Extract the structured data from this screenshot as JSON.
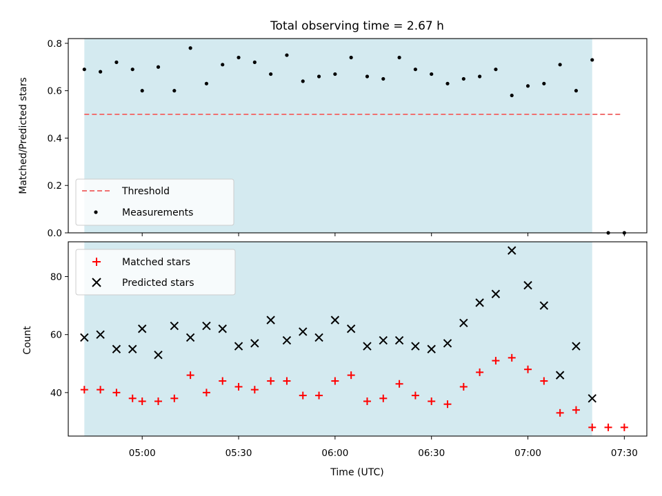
{
  "figure": {
    "title": "Total observing time = 2.67 h"
  },
  "chart_data": [
    {
      "type": "scatter",
      "ylabel": "Matched/Predicted stars",
      "xlim": [
        "04:37",
        "07:37"
      ],
      "ylim": [
        0.0,
        0.82
      ],
      "yticks": [
        {
          "value": 0.0,
          "label": "0.0"
        },
        {
          "value": 0.2,
          "label": "0.2"
        },
        {
          "value": 0.4,
          "label": "0.4"
        },
        {
          "value": 0.6,
          "label": "0.6"
        },
        {
          "value": 0.8,
          "label": "0.8"
        }
      ],
      "shaded_interval": {
        "start": "04:42",
        "end": "07:20",
        "color": "#d4eaf0"
      },
      "legend_position": "lower-left",
      "series": [
        {
          "name": "Threshold",
          "style": "dashed-line",
          "color": "#f07070",
          "x": [
            "04:42",
            "07:29"
          ],
          "y": [
            0.5,
            0.5
          ]
        },
        {
          "name": "Measurements",
          "style": "dot",
          "color": "#000000",
          "x": [
            "04:42",
            "04:47",
            "04:52",
            "04:57",
            "05:00",
            "05:05",
            "05:10",
            "05:15",
            "05:20",
            "05:25",
            "05:30",
            "05:35",
            "05:40",
            "05:45",
            "05:50",
            "05:55",
            "06:00",
            "06:05",
            "06:10",
            "06:15",
            "06:20",
            "06:25",
            "06:30",
            "06:35",
            "06:40",
            "06:45",
            "06:50",
            "06:55",
            "07:00",
            "07:05",
            "07:10",
            "07:15",
            "07:20",
            "07:25",
            "07:30"
          ],
          "y": [
            0.69,
            0.68,
            0.72,
            0.69,
            0.6,
            0.7,
            0.6,
            0.78,
            0.63,
            0.71,
            0.74,
            0.72,
            0.67,
            0.75,
            0.64,
            0.66,
            0.67,
            0.74,
            0.66,
            0.65,
            0.74,
            0.69,
            0.67,
            0.63,
            0.65,
            0.66,
            0.69,
            0.58,
            0.62,
            0.63,
            0.71,
            0.6,
            0.73,
            0.0,
            0.0
          ]
        }
      ]
    },
    {
      "type": "scatter",
      "ylabel": "Count",
      "xlabel": "Time (UTC)",
      "xlim": [
        "04:37",
        "07:37"
      ],
      "ylim": [
        25,
        92
      ],
      "xticks": [
        {
          "value": "05:00",
          "label": "05:00"
        },
        {
          "value": "05:30",
          "label": "05:30"
        },
        {
          "value": "06:00",
          "label": "06:00"
        },
        {
          "value": "06:30",
          "label": "06:30"
        },
        {
          "value": "07:00",
          "label": "07:00"
        },
        {
          "value": "07:30",
          "label": "07:30"
        }
      ],
      "yticks": [
        {
          "value": 40,
          "label": "40"
        },
        {
          "value": 60,
          "label": "60"
        },
        {
          "value": 80,
          "label": "80"
        }
      ],
      "shaded_interval": {
        "start": "04:42",
        "end": "07:20",
        "color": "#d4eaf0"
      },
      "legend_position": "upper-left",
      "series": [
        {
          "name": "Matched stars",
          "style": "plus",
          "color": "#ff0000",
          "x": [
            "04:42",
            "04:47",
            "04:52",
            "04:57",
            "05:00",
            "05:05",
            "05:10",
            "05:15",
            "05:20",
            "05:25",
            "05:30",
            "05:35",
            "05:40",
            "05:45",
            "05:50",
            "05:55",
            "06:00",
            "06:05",
            "06:10",
            "06:15",
            "06:20",
            "06:25",
            "06:30",
            "06:35",
            "06:40",
            "06:45",
            "06:50",
            "06:55",
            "07:00",
            "07:05",
            "07:10",
            "07:15",
            "07:20",
            "07:25",
            "07:30"
          ],
          "y": [
            41,
            41,
            40,
            38,
            37,
            37,
            38,
            46,
            40,
            44,
            42,
            41,
            44,
            44,
            39,
            39,
            44,
            46,
            37,
            38,
            43,
            39,
            37,
            36,
            42,
            47,
            51,
            52,
            48,
            44,
            33,
            34,
            28,
            28,
            28
          ]
        },
        {
          "name": "Predicted stars",
          "style": "x",
          "color": "#000000",
          "x": [
            "04:42",
            "04:47",
            "04:52",
            "04:57",
            "05:00",
            "05:05",
            "05:10",
            "05:15",
            "05:20",
            "05:25",
            "05:30",
            "05:35",
            "05:40",
            "05:45",
            "05:50",
            "05:55",
            "06:00",
            "06:05",
            "06:10",
            "06:15",
            "06:20",
            "06:25",
            "06:30",
            "06:35",
            "06:40",
            "06:45",
            "06:50",
            "06:55",
            "07:00",
            "07:05",
            "07:10",
            "07:15",
            "07:20"
          ],
          "y": [
            59,
            60,
            55,
            55,
            62,
            53,
            63,
            59,
            63,
            62,
            56,
            57,
            65,
            58,
            61,
            59,
            65,
            62,
            56,
            58,
            58,
            56,
            55,
            57,
            64,
            71,
            74,
            89,
            77,
            70,
            46,
            56,
            38
          ]
        }
      ]
    }
  ]
}
